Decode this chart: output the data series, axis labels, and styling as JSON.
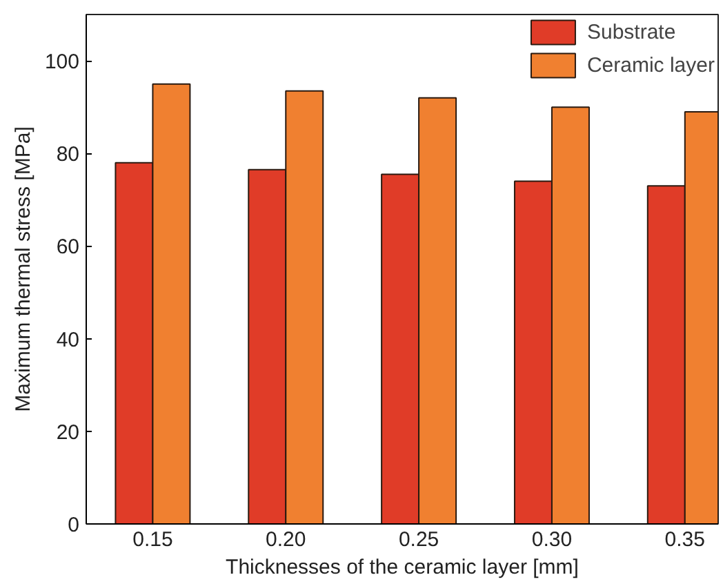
{
  "chart_data": {
    "type": "bar",
    "xlabel": "Thicknesses of the ceramic layer [mm]",
    "ylabel": "Maximum thermal stress [MPa]",
    "categories": [
      "0.15",
      "0.20",
      "0.25",
      "0.30",
      "0.35"
    ],
    "series": [
      {
        "name": "Substrate",
        "color": "#e03c28",
        "values": [
          78,
          76.5,
          75.5,
          74,
          73
        ]
      },
      {
        "name": "Ceramic layer",
        "color": "#f08030",
        "values": [
          95,
          93.5,
          92,
          90,
          89
        ]
      }
    ],
    "ylim": [
      0,
      110
    ],
    "yticks": [
      0,
      20,
      40,
      60,
      80,
      100
    ],
    "grid": false,
    "legend": "top right"
  }
}
